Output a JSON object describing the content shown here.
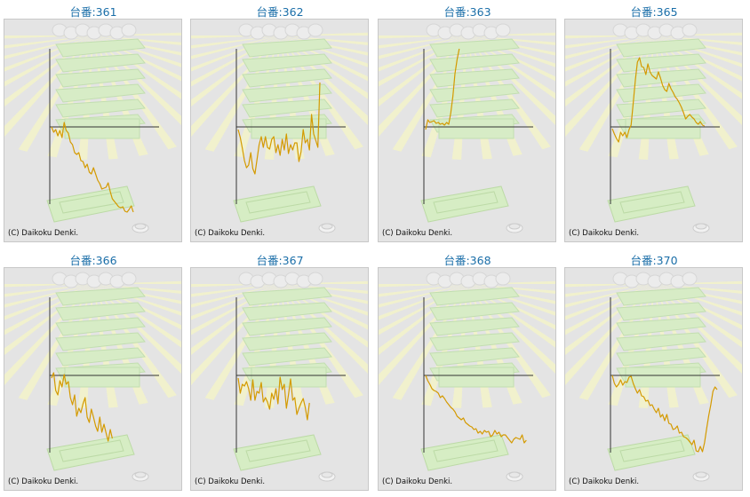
{
  "copyright": "(C) Daikoku Denki.",
  "colors": {
    "line": "#d49a00",
    "axis": "#333333",
    "panel_bg": "#e4e4e4",
    "title": "#1a6ea8"
  },
  "chart_data": [
    {
      "type": "line",
      "title": "台番:361",
      "values": [
        0,
        -6,
        -3,
        -10,
        -4,
        -12,
        5,
        -4,
        -7,
        -17,
        -20,
        -29,
        -31,
        -29,
        -38,
        -39,
        -46,
        -42,
        -51,
        -53,
        -46,
        -53,
        -60,
        -64,
        -70,
        -69,
        -68,
        -63,
        -73,
        -81,
        -84,
        -87,
        -90,
        -91,
        -90,
        -95,
        -96,
        -93,
        -89,
        -96
      ]
    },
    {
      "type": "line",
      "title": "台番:362",
      "values": [
        -3,
        -12,
        -24,
        -38,
        -46,
        -43,
        -29,
        -47,
        -53,
        -37,
        -20,
        -11,
        -23,
        -11,
        -23,
        -25,
        -14,
        -11,
        -29,
        -20,
        -32,
        -14,
        -26,
        -8,
        -30,
        -20,
        -26,
        -18,
        -18,
        -39,
        -28,
        -3,
        -18,
        -14,
        -26,
        14,
        -8,
        -15,
        -23,
        50
      ]
    },
    {
      "type": "line",
      "title": "台番:363",
      "values": [
        -3,
        8,
        5,
        6,
        7,
        4,
        5,
        3,
        4,
        2,
        5,
        3,
        16,
        35,
        60,
        76,
        88
      ]
    },
    {
      "type": "line",
      "title": "台番:365",
      "values": [
        -2,
        -8,
        -13,
        -17,
        -6,
        -10,
        -6,
        -12,
        -3,
        2,
        27,
        53,
        73,
        78,
        68,
        67,
        59,
        71,
        62,
        58,
        56,
        54,
        62,
        55,
        47,
        42,
        40,
        49,
        43,
        39,
        34,
        31,
        27,
        22,
        16,
        9,
        12,
        14,
        11,
        9,
        5,
        3,
        6,
        2,
        1
      ]
    },
    {
      "type": "line",
      "title": "台番:366",
      "values": [
        -3,
        3,
        -17,
        -22,
        -6,
        -13,
        1,
        -10,
        -7,
        -25,
        -33,
        -22,
        -46,
        -37,
        -42,
        -32,
        -25,
        -47,
        -53,
        -38,
        -47,
        -57,
        -63,
        -47,
        -64,
        -55,
        -65,
        -74,
        -61,
        -71
      ]
    },
    {
      "type": "line",
      "title": "台番:367",
      "values": [
        -3,
        -20,
        -10,
        -12,
        -7,
        -15,
        -28,
        -5,
        -28,
        -18,
        -20,
        -8,
        -30,
        -25,
        -30,
        -38,
        -20,
        -27,
        -15,
        -32,
        -2,
        -16,
        -10,
        -37,
        -22,
        -4,
        -28,
        -25,
        -44,
        -37,
        -31,
        -26,
        -36,
        -50,
        -31
      ]
    },
    {
      "type": "line",
      "title": "台番:368",
      "values": [
        0,
        -6,
        -10,
        -15,
        -17,
        -18,
        -20,
        -25,
        -23,
        -26,
        -30,
        -33,
        -36,
        -38,
        -41,
        -46,
        -48,
        -50,
        -48,
        -53,
        -55,
        -57,
        -58,
        -61,
        -60,
        -65,
        -63,
        -66,
        -62,
        -64,
        -63,
        -69,
        -67,
        -62,
        -66,
        -64,
        -69,
        -67,
        -67,
        -70,
        -73,
        -76,
        -72,
        -70,
        -71,
        -72,
        -67,
        -76,
        -73
      ]
    },
    {
      "type": "line",
      "title": "台番:370",
      "values": [
        0,
        -9,
        -13,
        -10,
        -5,
        -11,
        -7,
        -8,
        -2,
        -1,
        -9,
        -15,
        -20,
        -16,
        -23,
        -24,
        -29,
        -28,
        -34,
        -33,
        -38,
        -42,
        -37,
        -47,
        -44,
        -51,
        -44,
        -54,
        -55,
        -61,
        -60,
        -57,
        -65,
        -64,
        -69,
        -70,
        -72,
        -75,
        -78,
        -73,
        -85,
        -86,
        -80,
        -86,
        -76,
        -60,
        -45,
        -33,
        -18,
        -13,
        -16
      ]
    }
  ]
}
